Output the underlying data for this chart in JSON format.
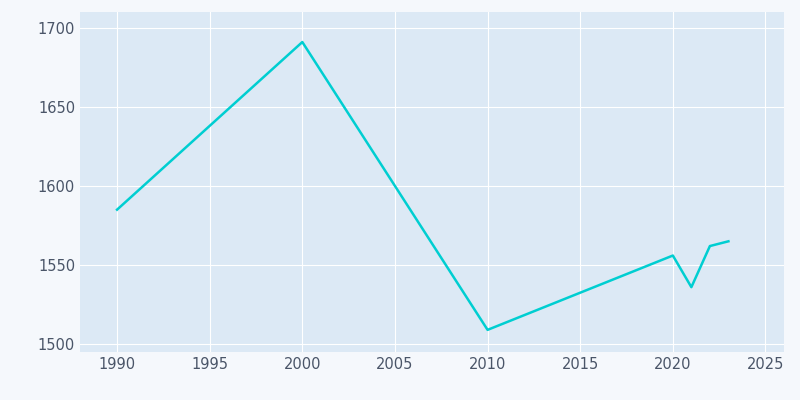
{
  "years": [
    1990,
    2000,
    2010,
    2020,
    2021,
    2022,
    2023
  ],
  "population": [
    1585,
    1691,
    1509,
    1556,
    1536,
    1562,
    1565
  ],
  "line_color": "#00CED1",
  "plot_background_color": "#dce9f5",
  "outer_background_color": "#f5f8fc",
  "xlim": [
    1988,
    2026
  ],
  "ylim": [
    1495,
    1710
  ],
  "yticks": [
    1500,
    1550,
    1600,
    1650,
    1700
  ],
  "xticks": [
    1990,
    1995,
    2000,
    2005,
    2010,
    2015,
    2020,
    2025
  ],
  "grid_color": "#ffffff",
  "linewidth": 1.8,
  "tick_label_color": "#4a5568",
  "tick_label_fontsize": 10.5
}
